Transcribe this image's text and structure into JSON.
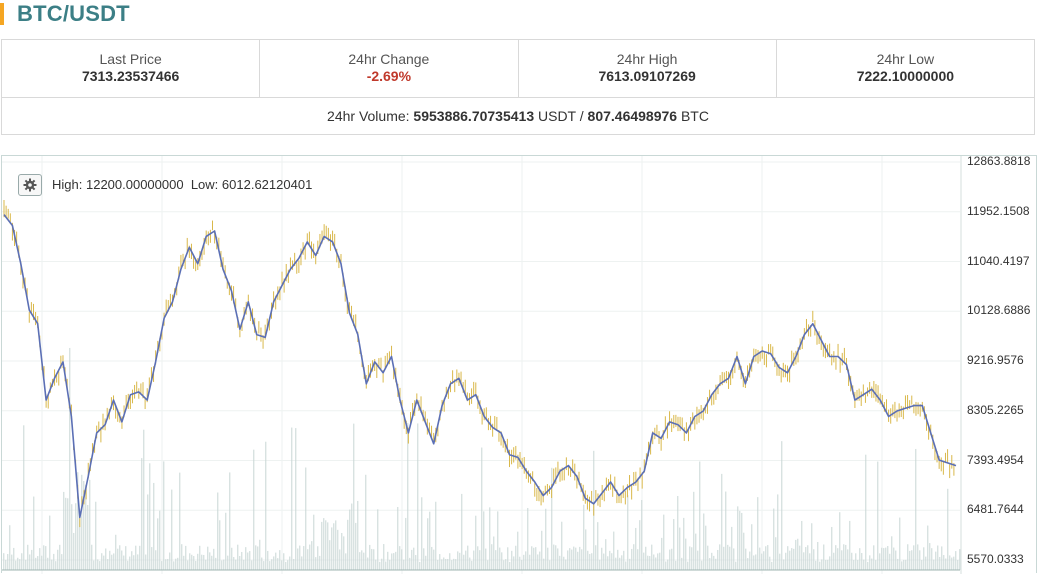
{
  "header": {
    "title": "BTC/USDT"
  },
  "stats": {
    "last_price_label": "Last Price",
    "last_price": "7313.23537466",
    "change_label": "24hr Change",
    "change": "-2.69%",
    "high_label": "24hr High",
    "high": "7613.09107269",
    "low_label": "24hr Low",
    "low": "7222.10000000",
    "volume_label": "24hr Volume:",
    "volume_usdt": "5953886.70735413",
    "volume_usdt_unit": "USDT /",
    "volume_btc": "807.46498976",
    "volume_btc_unit": "BTC"
  },
  "chart": {
    "settings_icon": "gear-icon",
    "high_label": "High:",
    "high_value": "12200.00000000",
    "low_label": "Low:",
    "low_value": "6012.62120401"
  },
  "colors": {
    "title": "#3c7f86",
    "accent": "#f5a623",
    "negative": "#c0392b",
    "line": "#5b6fb5",
    "candle": "#d9b84a",
    "volume": "#c8d6d4"
  },
  "chart_data": {
    "type": "line",
    "y_ticks": [
      "12863.8818",
      "11952.1508",
      "11040.4197",
      "10128.6886",
      "9216.9576",
      "8305.2265",
      "7393.4954",
      "6481.7644",
      "5570.0333"
    ],
    "ylim": [
      5570.0333,
      12863.8818
    ],
    "grid": true,
    "series": [
      {
        "values": [
          11900,
          11700,
          11000,
          10150,
          9900,
          8500,
          8900,
          9200,
          8200,
          6350,
          7100,
          7900,
          8050,
          8500,
          8100,
          8600,
          8650,
          8500,
          9200,
          10000,
          10300,
          10900,
          11300,
          11000,
          11500,
          11600,
          10900,
          10500,
          9800,
          10300,
          9700,
          9650,
          10300,
          10600,
          10900,
          11100,
          11400,
          11150,
          11500,
          11400,
          11000,
          10100,
          9700,
          8800,
          9200,
          9000,
          9300,
          8500,
          7900,
          8500,
          8100,
          7700,
          8400,
          8800,
          8900,
          8500,
          8600,
          8200,
          8000,
          7900,
          7500,
          7450,
          7200,
          7000,
          6750,
          6900,
          7200,
          7300,
          7100,
          6700,
          6600,
          6800,
          7000,
          6750,
          6900,
          7000,
          7200,
          7900,
          7800,
          8100,
          8050,
          7900,
          8200,
          8300,
          8600,
          8800,
          8900,
          9300,
          8800,
          9300,
          9400,
          9350,
          9100,
          9000,
          9300,
          9700,
          9900,
          9600,
          9300,
          9300,
          9150,
          8500,
          8600,
          8700,
          8500,
          8200,
          8300,
          8350,
          8400,
          8400,
          7900,
          7400,
          7350,
          7300
        ]
      }
    ]
  }
}
